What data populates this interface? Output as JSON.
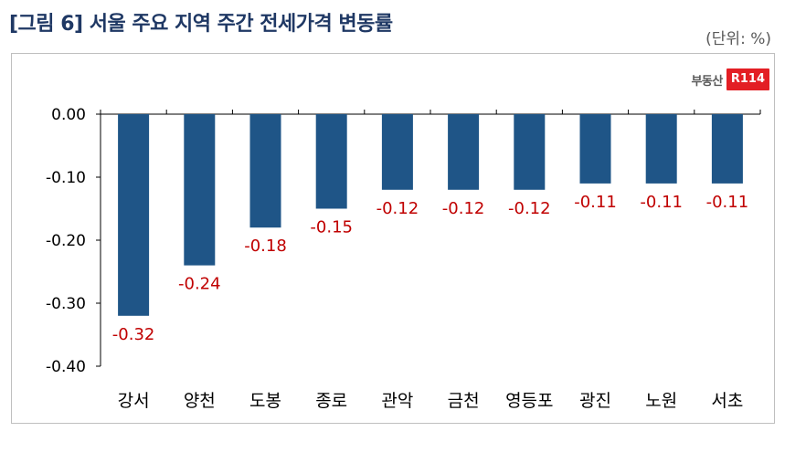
{
  "header": {
    "title": "[그림 6] 서울 주요 지역 주간 전세가격 변동률",
    "unit": "(단위: %)"
  },
  "logo": {
    "text": "부동산",
    "badge": "R114",
    "badge_color": "#e31e24"
  },
  "chart_data": {
    "type": "bar",
    "categories": [
      "강서",
      "양천",
      "도봉",
      "종로",
      "관악",
      "금천",
      "영등포",
      "광진",
      "노원",
      "서초"
    ],
    "values": [
      -0.32,
      -0.24,
      -0.18,
      -0.15,
      -0.12,
      -0.12,
      -0.12,
      -0.11,
      -0.11,
      -0.11
    ],
    "value_labels": [
      "-0.32",
      "-0.24",
      "-0.18",
      "-0.15",
      "-0.12",
      "-0.12",
      "-0.12",
      "-0.11",
      "-0.11",
      "-0.11"
    ],
    "yticks": [
      0,
      -0.1,
      -0.2,
      -0.3,
      -0.4
    ],
    "ytick_labels": [
      "0.00",
      "-0.10",
      "-0.20",
      "-0.30",
      "-0.40"
    ],
    "ylim": [
      -0.4,
      0
    ],
    "grid": false,
    "bar_color": "#1f5587",
    "label_color": "#c00000"
  }
}
